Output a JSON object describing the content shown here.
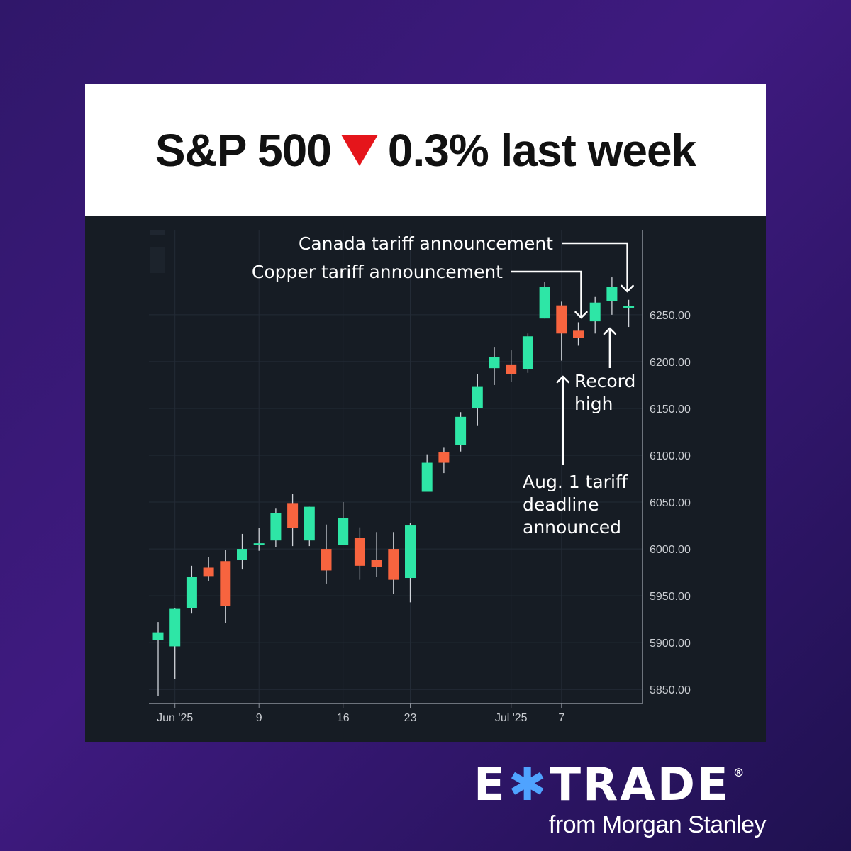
{
  "header": {
    "prefix": "S&P 500",
    "direction": "down",
    "direction_color": "#e5151b",
    "suffix": "0.3% last week"
  },
  "colors": {
    "up": "#2ee6a6",
    "down": "#f7643f",
    "panel_bg": "#161c24",
    "grid": "#232b36",
    "axis_text": "#c9ccd1",
    "annotation": "#ffffff"
  },
  "brand": {
    "left": "E",
    "star_icon": "star-burst-icon",
    "right": "TRADE",
    "registered": "®",
    "tagline": "from Morgan Stanley"
  },
  "chart_data": {
    "type": "candlestick",
    "title": "",
    "xlabel": "",
    "ylabel": "",
    "ylim": [
      5835,
      6340
    ],
    "y_ticks": [
      5850,
      5900,
      5950,
      6000,
      6050,
      6100,
      6150,
      6200,
      6250
    ],
    "y_tick_labels": [
      "5850.00",
      "5900.00",
      "5950.00",
      "6000.00",
      "6050.00",
      "6100.00",
      "6150.00",
      "6200.00",
      "6250.00"
    ],
    "x_ticks": [
      {
        "label": "Jun '25",
        "date": "2025-06-02"
      },
      {
        "label": "9",
        "date": "2025-06-09"
      },
      {
        "label": "16",
        "date": "2025-06-16"
      },
      {
        "label": "23",
        "date": "2025-06-23"
      },
      {
        "label": "Jul '25",
        "date": "2025-07-01"
      },
      {
        "label": "7",
        "date": "2025-07-07"
      }
    ],
    "candles": [
      {
        "date": "2025-05-30",
        "open": 5903,
        "high": 5922,
        "low": 5843,
        "close": 5911
      },
      {
        "date": "2025-06-02",
        "open": 5896,
        "high": 5937,
        "low": 5861,
        "close": 5936
      },
      {
        "date": "2025-06-03",
        "open": 5937,
        "high": 5982,
        "low": 5931,
        "close": 5970
      },
      {
        "date": "2025-06-04",
        "open": 5980,
        "high": 5991,
        "low": 5966,
        "close": 5971
      },
      {
        "date": "2025-06-05",
        "open": 5987,
        "high": 5999,
        "low": 5921,
        "close": 5939
      },
      {
        "date": "2025-06-06",
        "open": 5988,
        "high": 6016,
        "low": 5978,
        "close": 6000
      },
      {
        "date": "2025-06-09",
        "open": 6005,
        "high": 6022,
        "low": 5998,
        "close": 6006
      },
      {
        "date": "2025-06-10",
        "open": 6009,
        "high": 6043,
        "low": 6002,
        "close": 6038
      },
      {
        "date": "2025-06-11",
        "open": 6049,
        "high": 6059,
        "low": 6003,
        "close": 6022
      },
      {
        "date": "2025-06-12",
        "open": 6009,
        "high": 6045,
        "low": 6003,
        "close": 6045
      },
      {
        "date": "2025-06-13",
        "open": 6000,
        "high": 6026,
        "low": 5963,
        "close": 5977
      },
      {
        "date": "2025-06-16",
        "open": 6004,
        "high": 6050,
        "low": 6004,
        "close": 6033
      },
      {
        "date": "2025-06-17",
        "open": 6012,
        "high": 6023,
        "low": 5967,
        "close": 5982
      },
      {
        "date": "2025-06-18",
        "open": 5988,
        "high": 6018,
        "low": 5970,
        "close": 5981
      },
      {
        "date": "2025-06-20",
        "open": 6000,
        "high": 6018,
        "low": 5952,
        "close": 5967
      },
      {
        "date": "2025-06-23",
        "open": 5969,
        "high": 6028,
        "low": 5943,
        "close": 6025
      },
      {
        "date": "2025-06-24",
        "open": 6061,
        "high": 6101,
        "low": 6061,
        "close": 6092
      },
      {
        "date": "2025-06-25",
        "open": 6103,
        "high": 6108,
        "low": 6081,
        "close": 6092
      },
      {
        "date": "2025-06-26",
        "open": 6111,
        "high": 6146,
        "low": 6104,
        "close": 6141
      },
      {
        "date": "2025-06-27",
        "open": 6150,
        "high": 6187,
        "low": 6132,
        "close": 6173
      },
      {
        "date": "2025-06-30",
        "open": 6193,
        "high": 6215,
        "low": 6175,
        "close": 6205
      },
      {
        "date": "2025-07-01",
        "open": 6197,
        "high": 6212,
        "low": 6178,
        "close": 6187
      },
      {
        "date": "2025-07-02",
        "open": 6192,
        "high": 6230,
        "low": 6188,
        "close": 6227
      },
      {
        "date": "2025-07-03",
        "open": 6246,
        "high": 6285,
        "low": 6246,
        "close": 6280
      },
      {
        "date": "2025-07-07",
        "open": 6260,
        "high": 6264,
        "low": 6201,
        "close": 6230
      },
      {
        "date": "2025-07-08",
        "open": 6233,
        "high": 6242,
        "low": 6217,
        "close": 6225
      },
      {
        "date": "2025-07-09",
        "open": 6243,
        "high": 6269,
        "low": 6230,
        "close": 6263
      },
      {
        "date": "2025-07-10",
        "open": 6265,
        "high": 6290,
        "low": 6250,
        "close": 6280
      },
      {
        "date": "2025-07-11",
        "open": 6258,
        "high": 6266,
        "low": 6237,
        "close": 6259
      }
    ],
    "annotations": [
      {
        "text": [
          "Canada tariff announcement"
        ],
        "target_date": "2025-07-11"
      },
      {
        "text": [
          "Copper tariff announcement"
        ],
        "target_date": "2025-07-08"
      },
      {
        "text": [
          "Record",
          "high"
        ],
        "target_date": "2025-07-10"
      },
      {
        "text": [
          "Aug. 1 tariff",
          "deadline",
          "announced"
        ],
        "target_date": "2025-07-07"
      }
    ],
    "grid": true,
    "legend": "none"
  }
}
